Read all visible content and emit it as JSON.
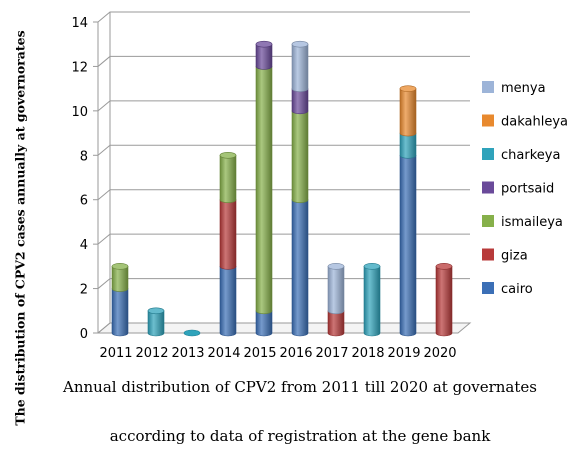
{
  "chart_data": {
    "type": "bar",
    "stacked": true,
    "style": "3d-cylinder",
    "categories": [
      "2011",
      "2012",
      "2013",
      "2014",
      "2015",
      "2016",
      "2017",
      "2018",
      "2019",
      "2020"
    ],
    "series": [
      {
        "name": "cairo",
        "color": "#3b6fb6",
        "values": [
          2,
          0,
          0,
          3,
          1,
          6,
          0,
          0,
          8,
          0
        ]
      },
      {
        "name": "giza",
        "color": "#b83a3a",
        "values": [
          0,
          0,
          0,
          3,
          0,
          0,
          1,
          0,
          0,
          3
        ]
      },
      {
        "name": "ismaileya",
        "color": "#86b04a",
        "values": [
          1,
          0,
          0,
          2,
          11,
          4,
          0,
          0,
          0,
          0
        ]
      },
      {
        "name": "portsaid",
        "color": "#6a4a9a",
        "values": [
          0,
          0,
          0,
          0,
          1,
          1,
          0,
          0,
          0,
          0
        ]
      },
      {
        "name": "charkeya",
        "color": "#2fa3bb",
        "values": [
          0,
          1,
          0,
          0,
          0,
          0,
          0,
          3,
          1,
          0
        ]
      },
      {
        "name": "dakahleya",
        "color": "#e8892e",
        "values": [
          0,
          0,
          0,
          0,
          0,
          0,
          0,
          0,
          2,
          0
        ]
      },
      {
        "name": "menya",
        "color": "#9db4d8",
        "values": [
          0,
          0,
          0,
          0,
          0,
          2,
          2,
          0,
          0,
          0
        ]
      }
    ],
    "legend_order": [
      "menya",
      "dakahleya",
      "charkeya",
      "portsaid",
      "ismaileya",
      "giza",
      "cairo"
    ],
    "yticks": [
      0,
      2,
      4,
      6,
      8,
      10,
      12,
      14
    ],
    "ylim": [
      0,
      14
    ],
    "ylabel": "The distribution of CPV2  cases annually at governorates",
    "xlabel_lines": [
      "Annual distribution of CPV2 from 2011 till 2020 at governates",
      "according to data of registration at the gene bank"
    ],
    "grid": true,
    "legend_position": "right"
  }
}
